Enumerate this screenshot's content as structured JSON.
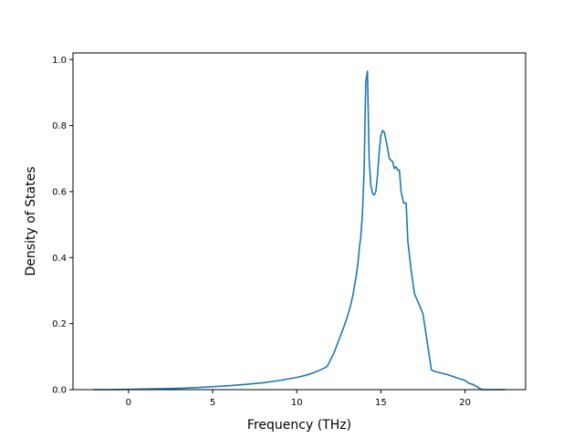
{
  "chart_data": {
    "type": "line",
    "title": "",
    "xlabel": "Frequency (THz)",
    "ylabel": "Density of States",
    "xlim": [
      -3.3,
      23.6
    ],
    "ylim": [
      0.0,
      1.02
    ],
    "xticks": [
      0,
      5,
      10,
      15,
      20
    ],
    "yticks": [
      0.0,
      0.2,
      0.4,
      0.6,
      0.8,
      1.0
    ],
    "xtick_labels": [
      "0",
      "5",
      "10",
      "15",
      "20"
    ],
    "ytick_labels": [
      "0.0",
      "0.2",
      "0.4",
      "0.6",
      "0.8",
      "1.0"
    ],
    "grid": false,
    "legend": "none",
    "line_color": "#1f77b4",
    "series": [
      {
        "x": [
          -2.1,
          -1.0,
          0.0,
          1.0,
          2.0,
          3.0,
          4.0,
          5.0,
          6.0,
          7.0,
          8.0,
          9.0,
          10.0,
          10.5,
          11.0,
          11.5,
          11.8,
          12.0,
          12.2,
          12.5,
          12.8,
          13.0,
          13.2,
          13.35,
          13.45,
          13.55,
          13.65,
          13.72,
          13.8,
          13.9,
          14.0,
          14.1,
          14.2,
          14.3,
          14.4,
          14.5,
          14.6,
          14.7,
          14.8,
          14.9,
          15.0,
          15.1,
          15.2,
          15.35,
          15.5,
          15.7,
          15.8,
          15.9,
          16.0,
          16.1,
          16.2,
          16.35,
          16.5,
          16.6,
          16.8,
          17.0,
          17.5,
          18.0,
          18.2,
          18.6,
          19.0,
          19.5,
          20.0,
          20.2,
          20.5,
          21.0,
          22.4
        ],
        "y": [
          0.0,
          0.0,
          0.001,
          0.002,
          0.003,
          0.004,
          0.006,
          0.009,
          0.012,
          0.016,
          0.021,
          0.028,
          0.037,
          0.043,
          0.051,
          0.062,
          0.07,
          0.09,
          0.11,
          0.15,
          0.19,
          0.22,
          0.255,
          0.29,
          0.32,
          0.35,
          0.39,
          0.43,
          0.46,
          0.53,
          0.66,
          0.93,
          0.965,
          0.7,
          0.62,
          0.595,
          0.59,
          0.6,
          0.65,
          0.72,
          0.77,
          0.785,
          0.78,
          0.745,
          0.7,
          0.69,
          0.67,
          0.675,
          0.665,
          0.665,
          0.6,
          0.565,
          0.565,
          0.45,
          0.36,
          0.29,
          0.23,
          0.06,
          0.055,
          0.05,
          0.045,
          0.036,
          0.028,
          0.02,
          0.015,
          0.0,
          0.0
        ]
      }
    ]
  }
}
